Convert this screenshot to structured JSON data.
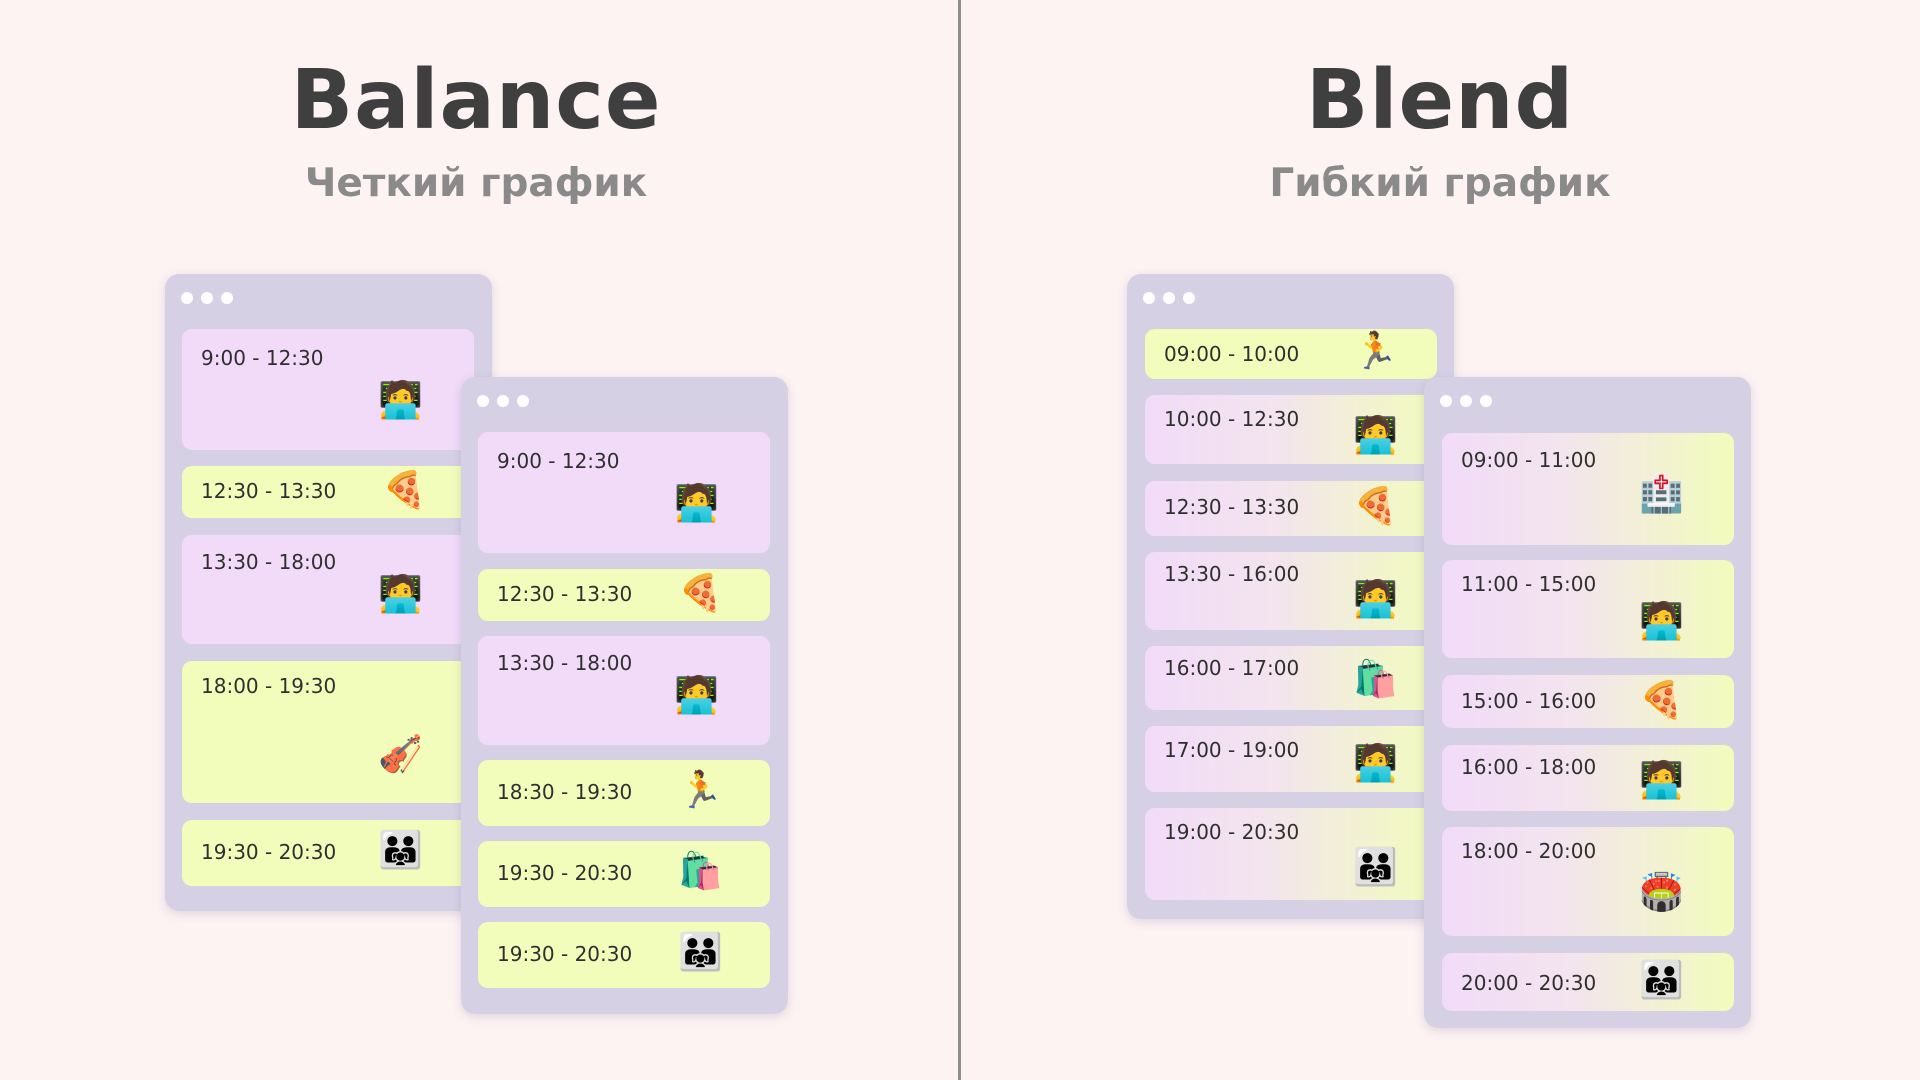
{
  "balance": {
    "title": "Balance",
    "subtitle": "Четкий график",
    "left_window": [
      {
        "time": "9:00 - 12:30",
        "icon": "person-laptop-icon",
        "emoji": "🧑‍💻"
      },
      {
        "time": "12:30 - 13:30",
        "icon": "pizza-icon",
        "emoji": "🍕"
      },
      {
        "time": "13:30 - 18:00",
        "icon": "person-laptop-icon",
        "emoji": "🧑‍💻"
      },
      {
        "time": "18:00 - 19:30",
        "icon": "violin-icon",
        "emoji": "🎻"
      },
      {
        "time": "19:30 - 20:30",
        "icon": "family-icon",
        "emoji": "👨‍👨‍👧"
      }
    ],
    "right_window": [
      {
        "time": "9:00 - 12:30",
        "icon": "person-laptop-icon",
        "emoji": "🧑‍💻"
      },
      {
        "time": "12:30 - 13:30",
        "icon": "pizza-icon",
        "emoji": "🍕"
      },
      {
        "time": "13:30 - 18:00",
        "icon": "person-laptop-icon",
        "emoji": "🧑‍💻"
      },
      {
        "time": "18:30 - 19:30",
        "icon": "running-icon",
        "emoji": "🏃"
      },
      {
        "time": "19:30 - 20:30",
        "icon": "shopping-bags-icon",
        "emoji": "🛍️"
      },
      {
        "time": "19:30 - 20:30",
        "icon": "family-icon",
        "emoji": "👨‍👨‍👧"
      }
    ]
  },
  "blend": {
    "title": "Blend",
    "subtitle": "Гибкий график",
    "left_window": [
      {
        "time": "09:00 - 10:00",
        "icon": "running-icon",
        "emoji": "🏃"
      },
      {
        "time": "10:00 - 12:30",
        "icon": "person-laptop-icon",
        "emoji": "🧑‍💻"
      },
      {
        "time": "12:30 - 13:30",
        "icon": "pizza-icon",
        "emoji": "🍕"
      },
      {
        "time": "13:30 - 16:00",
        "icon": "person-laptop-icon",
        "emoji": "🧑‍💻"
      },
      {
        "time": "16:00 - 17:00",
        "icon": "shopping-bags-icon",
        "emoji": "🛍️"
      },
      {
        "time": "17:00 - 19:00",
        "icon": "person-laptop-icon",
        "emoji": "🧑‍💻"
      },
      {
        "time": "19:00 - 20:30",
        "icon": "family-icon",
        "emoji": "👨‍👨‍👧"
      }
    ],
    "right_window": [
      {
        "time": "09:00 - 11:00",
        "icon": "hospital-icon",
        "emoji": "🏥"
      },
      {
        "time": "11:00 - 15:00",
        "icon": "person-laptop-icon",
        "emoji": "🧑‍💻"
      },
      {
        "time": "15:00 - 16:00",
        "icon": "pizza-icon",
        "emoji": "🍕"
      },
      {
        "time": "16:00 - 18:00",
        "icon": "person-laptop-icon",
        "emoji": "🧑‍💻"
      },
      {
        "time": "18:00 - 20:00",
        "icon": "stadium-icon",
        "emoji": "🏟️"
      },
      {
        "time": "20:00 - 20:30",
        "icon": "family-icon",
        "emoji": "👨‍👨‍👧"
      }
    ]
  },
  "colors": {
    "background": "#fdf3f3",
    "window": "#d6d0e5",
    "card_pink": "#f1dbf9",
    "card_yellow": "#f3fdbb",
    "divider": "#8e8e8e"
  }
}
